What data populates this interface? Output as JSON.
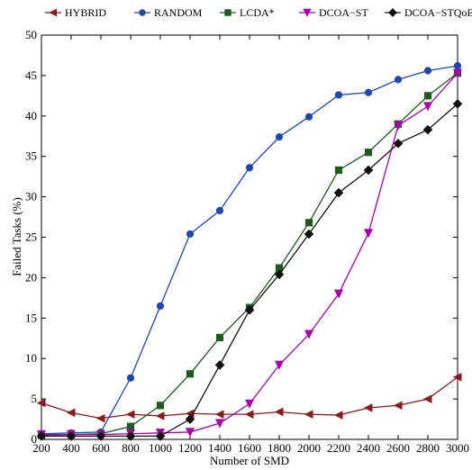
{
  "chart_data": {
    "type": "line",
    "xlabel": "Number of SMD",
    "ylabel": "Failed Tasks (%)",
    "xlim": [
      200,
      3000
    ],
    "ylim": [
      0,
      50
    ],
    "x": [
      200,
      400,
      600,
      800,
      1000,
      1200,
      1400,
      1600,
      1800,
      2000,
      2200,
      2400,
      2600,
      2800,
      3000
    ],
    "x_ticks": [
      200,
      400,
      600,
      800,
      1000,
      1200,
      1400,
      1600,
      1800,
      2000,
      2200,
      2400,
      2600,
      2800,
      3000
    ],
    "y_ticks": [
      0,
      5,
      10,
      15,
      20,
      25,
      30,
      35,
      40,
      45,
      50
    ],
    "grid": false,
    "legend_position": "top",
    "series": [
      {
        "name": "HYBRID",
        "color": "#8B1A1A",
        "marker": "triangle-left",
        "values": [
          4.5,
          3.3,
          2.6,
          3.1,
          2.9,
          3.2,
          3.1,
          3.1,
          3.4,
          3.1,
          3.0,
          3.9,
          4.2,
          5.0,
          7.7
        ]
      },
      {
        "name": "RANDOM",
        "color": "#1F47B4",
        "marker": "circle",
        "values": [
          0.7,
          0.8,
          0.9,
          7.6,
          16.5,
          25.4,
          28.3,
          33.6,
          37.4,
          39.9,
          42.6,
          42.9,
          44.5,
          45.6,
          46.2
        ]
      },
      {
        "name": "LCDA*",
        "color": "#1E5A1E",
        "marker": "square",
        "values": [
          0.5,
          0.6,
          0.7,
          1.6,
          4.2,
          8.1,
          12.6,
          16.3,
          21.2,
          26.8,
          33.3,
          35.5,
          39.0,
          42.5,
          45.3
        ]
      },
      {
        "name": "DCOA−ST",
        "color": "#AA00AA",
        "marker": "triangle-down",
        "values": [
          0.6,
          0.6,
          0.6,
          0.7,
          0.8,
          0.9,
          2.0,
          4.4,
          9.2,
          13.0,
          18.0,
          25.5,
          38.8,
          41.2,
          45.3
        ]
      },
      {
        "name": "DCOA−STQoE",
        "color": "#111111",
        "marker": "diamond",
        "values": [
          0.4,
          0.4,
          0.4,
          0.4,
          0.4,
          2.5,
          9.2,
          16.0,
          20.4,
          25.4,
          30.5,
          33.3,
          36.6,
          38.3,
          41.5
        ]
      }
    ]
  }
}
